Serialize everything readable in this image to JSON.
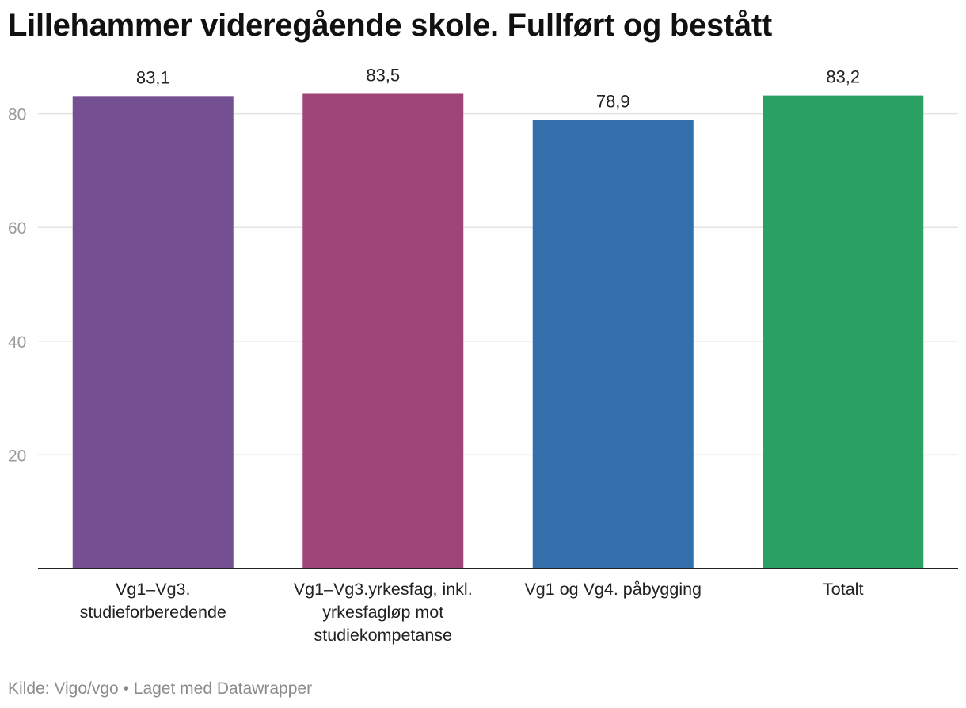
{
  "chart_data": {
    "type": "bar",
    "title": "Lillehammer videregående skole. Fullført og bestått",
    "categories": [
      [
        "Vg1–Vg3.",
        "studieforberedende"
      ],
      [
        "Vg1–Vg3.yrkesfag, inkl.",
        "yrkesfagløp mot",
        "studiekompetanse"
      ],
      [
        "Vg1 og Vg4. påbygging"
      ],
      [
        "Totalt"
      ]
    ],
    "values": [
      83.1,
      83.5,
      78.9,
      83.2
    ],
    "value_labels": [
      "83,1",
      "83,5",
      "78,9",
      "83,2"
    ],
    "colors": [
      "#744f91",
      "#a04577",
      "#326fab",
      "#2aa063"
    ],
    "ylim": [
      0,
      80
    ],
    "yticks": [
      20,
      40,
      60,
      80
    ],
    "xlabel": "",
    "ylabel": "",
    "grid": true
  },
  "footer": {
    "source": "Kilde: Vigo/vgo",
    "separator": "•",
    "credit": "Laget med Datawrapper"
  }
}
